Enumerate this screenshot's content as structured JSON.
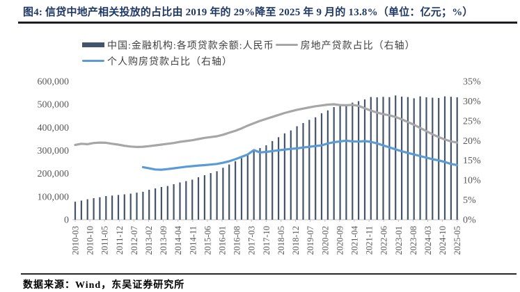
{
  "title": "图4: 信贷中地产相关投放的占比由 2019 年的 29%降至 2025 年 9 月的 13.8%（单位：亿元；%）",
  "footer": {
    "text": "数据来源：Wind，东吴证券研究所"
  },
  "colors": {
    "title": "#1F3864",
    "title_rule": "#1c1c24",
    "footer_rule": "#262626",
    "axis_text": "#595959",
    "axis_line": "#BFBFBF",
    "bar": "#44546A",
    "line_gray": "#A6A6A6",
    "line_blue": "#5B9BD5"
  },
  "legend": {
    "items": [
      {
        "label": "中国:金融机构:各项贷款余额:人民币",
        "type": "bar",
        "color": "#44546A"
      },
      {
        "label": "房地产贷款占比（右轴）",
        "type": "line",
        "color": "#A6A6A6"
      },
      {
        "label": "个人购房贷款占比（右轴）",
        "type": "line",
        "color": "#5B9BD5"
      }
    ]
  },
  "chart_data": {
    "type": "bar",
    "subtype": "combo-bar-with-two-lines",
    "x_frequency": "quarterly",
    "x_start": "2010-03",
    "x_end": "2025-09",
    "grid": "off",
    "legend_position": "top",
    "x_tick_labels": [
      "2010-03",
      "2010-10",
      "2011-05",
      "2011-12",
      "2012-07",
      "2013-02",
      "2013-09",
      "2014-04",
      "2014-11",
      "2015-06",
      "2016-01",
      "2016-08",
      "2017-03",
      "2017-10",
      "2018-05",
      "2018-12",
      "2019-07",
      "2020-02",
      "2020-09",
      "2021-04",
      "2021-11",
      "2022-06",
      "2023-01",
      "2023-08",
      "2024-03",
      "2024-10",
      "2025-05"
    ],
    "left_axis": {
      "min": 0,
      "max": 600000,
      "step": 100000,
      "tick_labels": [
        "0",
        "100,000",
        "200,000",
        "300,000",
        "400,000",
        "500,000",
        "600,000"
      ]
    },
    "right_axis": {
      "min": 0,
      "max": 35,
      "step": 5,
      "tick_labels": [
        "0%",
        "5%",
        "10%",
        "15%",
        "20%",
        "25%",
        "30%",
        "35%"
      ]
    },
    "series": [
      {
        "name": "中国:金融机构:各项贷款余额:人民币",
        "type": "bar",
        "axis": "left",
        "color": "#44546A",
        "unit": "亿元",
        "values": [
          78000,
          83000,
          88500,
          93500,
          97500,
          102500,
          104500,
          107300,
          110000,
          113200,
          117400,
          121100,
          129800,
          135600,
          141700,
          146100,
          154200,
          161600,
          167400,
          173700,
          184100,
          193000,
          201900,
          210100,
          225100,
          239400,
          253300,
          266800,
          283900,
          297200,
          311000,
          322500,
          341000,
          357800,
          374500,
          387000,
          405200,
          419100,
          432900,
          444100,
          461600,
          474000,
          488300,
          495800,
          500300,
          507800,
          514000,
          521700,
          532200,
          531100,
          532900,
          531600,
          538900,
          533700,
          531900,
          526300,
          535000,
          531000,
          529000,
          528000,
          535000,
          533000,
          531000
        ]
      },
      {
        "name": "房地产贷款占比（右轴）",
        "type": "line",
        "axis": "right",
        "color": "#A6A6A6",
        "unit": "%",
        "values": [
          18.9,
          19.2,
          19.1,
          19.4,
          19.5,
          19.45,
          19.2,
          19.0,
          18.7,
          18.5,
          18.4,
          18.45,
          18.6,
          18.8,
          19.0,
          19.2,
          19.4,
          19.7,
          19.9,
          20.1,
          20.4,
          20.7,
          20.9,
          21.1,
          21.5,
          22.0,
          22.5,
          23.1,
          23.8,
          24.4,
          25.0,
          25.5,
          26.0,
          26.5,
          27.0,
          27.4,
          27.8,
          28.1,
          28.4,
          28.7,
          28.9,
          29.1,
          29.2,
          29.0,
          28.95,
          29.05,
          28.8,
          28.2,
          27.6,
          27.1,
          26.7,
          26.4,
          26.0,
          25.4,
          24.7,
          24.0,
          23.2,
          22.4,
          21.6,
          20.9,
          20.3,
          19.8,
          19.5
        ]
      },
      {
        "name": "个人购房贷款占比（右轴）",
        "type": "line",
        "axis": "right",
        "color": "#5B9BD5",
        "unit": "%",
        "values": [
          null,
          null,
          null,
          null,
          null,
          null,
          null,
          null,
          null,
          null,
          null,
          13.3,
          13.0,
          12.7,
          12.65,
          12.8,
          13.0,
          13.2,
          13.4,
          13.55,
          13.7,
          13.8,
          13.95,
          14.1,
          14.4,
          14.8,
          15.3,
          15.9,
          16.5,
          17.6,
          17.0,
          17.15,
          17.35,
          17.55,
          17.75,
          17.9,
          18.05,
          18.25,
          18.45,
          18.65,
          18.8,
          19.3,
          19.6,
          19.8,
          20.0,
          19.8,
          19.75,
          19.9,
          19.7,
          19.3,
          18.8,
          18.3,
          17.8,
          17.3,
          16.9,
          16.5,
          16.1,
          15.7,
          15.3,
          15.0,
          14.6,
          14.1,
          13.8
        ]
      }
    ]
  }
}
